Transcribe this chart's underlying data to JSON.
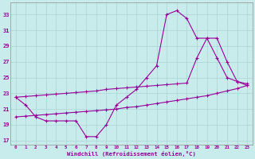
{
  "xlabel": "Windchill (Refroidissement éolien,°C)",
  "bg_color": "#c8ecec",
  "grid_color": "#b0d8d8",
  "line_color": "#990099",
  "x_ticks": [
    0,
    1,
    2,
    3,
    4,
    5,
    6,
    7,
    8,
    9,
    10,
    11,
    12,
    13,
    14,
    15,
    16,
    17,
    18,
    19,
    20,
    21,
    22,
    23
  ],
  "y_ticks": [
    17,
    19,
    21,
    23,
    25,
    27,
    29,
    31,
    33
  ],
  "ylim": [
    16.5,
    34.5
  ],
  "xlim": [
    -0.5,
    23.5
  ],
  "line1_x": [
    0,
    1,
    2,
    3,
    4,
    5,
    6,
    7,
    8,
    9,
    10,
    11,
    12,
    13,
    14,
    15,
    16,
    17,
    18,
    19,
    20,
    21,
    22,
    23
  ],
  "line1_y": [
    22.5,
    21.5,
    20.0,
    19.5,
    19.5,
    19.5,
    19.5,
    17.5,
    17.5,
    19.0,
    21.5,
    22.5,
    23.5,
    25.0,
    26.5,
    33.0,
    33.5,
    32.5,
    30.0,
    30.0,
    27.5,
    25.0,
    24.5,
    24.0
  ],
  "line2_x": [
    0,
    1,
    2,
    3,
    4,
    5,
    6,
    7,
    8,
    9,
    10,
    11,
    12,
    13,
    14,
    15,
    16,
    17,
    18,
    19,
    20,
    21,
    22,
    23
  ],
  "line2_y": [
    22.5,
    22.6,
    22.7,
    22.8,
    22.9,
    23.0,
    23.1,
    23.2,
    23.3,
    23.5,
    23.6,
    23.7,
    23.8,
    23.9,
    24.0,
    24.1,
    24.2,
    24.3,
    27.5,
    30.0,
    30.0,
    27.0,
    24.5,
    24.2
  ],
  "line3_x": [
    0,
    1,
    2,
    3,
    4,
    5,
    6,
    7,
    8,
    9,
    10,
    11,
    12,
    13,
    14,
    15,
    16,
    17,
    18,
    19,
    20,
    21,
    22,
    23
  ],
  "line3_y": [
    20.0,
    20.1,
    20.2,
    20.3,
    20.4,
    20.5,
    20.6,
    20.7,
    20.8,
    20.9,
    21.0,
    21.2,
    21.3,
    21.5,
    21.7,
    21.9,
    22.1,
    22.3,
    22.5,
    22.7,
    23.0,
    23.3,
    23.6,
    24.0
  ]
}
